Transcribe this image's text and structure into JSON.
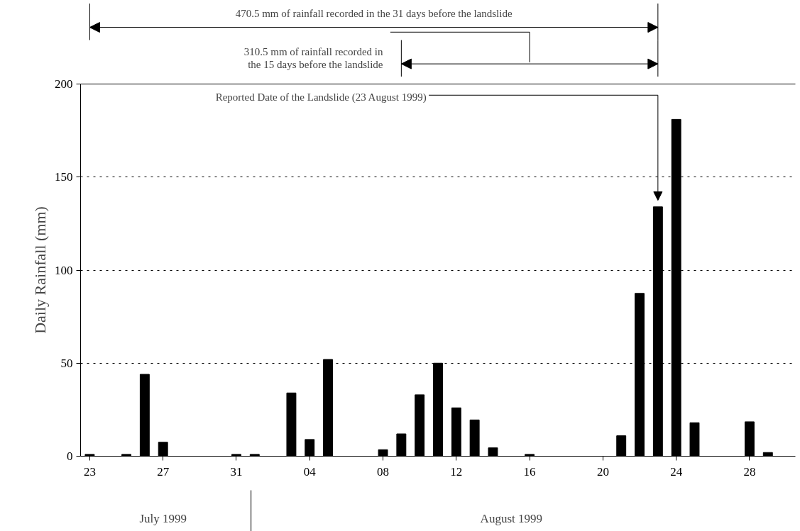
{
  "chart_data": {
    "type": "bar",
    "ylabel": "Daily Rainfall (mm)",
    "color": "#000000",
    "x": [
      "1999-07-23",
      "1999-07-24",
      "1999-07-25",
      "1999-07-26",
      "1999-07-27",
      "1999-07-28",
      "1999-07-29",
      "1999-07-30",
      "1999-07-31",
      "1999-08-01",
      "1999-08-02",
      "1999-08-03",
      "1999-08-04",
      "1999-08-05",
      "1999-08-06",
      "1999-08-07",
      "1999-08-08",
      "1999-08-09",
      "1999-08-10",
      "1999-08-11",
      "1999-08-12",
      "1999-08-13",
      "1999-08-14",
      "1999-08-15",
      "1999-08-16",
      "1999-08-17",
      "1999-08-18",
      "1999-08-19",
      "1999-08-20",
      "1999-08-21",
      "1999-08-22",
      "1999-08-23",
      "1999-08-24",
      "1999-08-25",
      "1999-08-26",
      "1999-08-27",
      "1999-08-28",
      "1999-08-29"
    ],
    "values": [
      1,
      0,
      1,
      44,
      7.5,
      0,
      0,
      0,
      1,
      1,
      0,
      34,
      9,
      52,
      0,
      0,
      3.5,
      12,
      33,
      50,
      26,
      19.5,
      4.5,
      0,
      1,
      0,
      0,
      0,
      0,
      11,
      87.5,
      134,
      181,
      18,
      0,
      0,
      18.5,
      2
    ],
    "xlim": [
      "1999-07-22T12:00",
      "1999-08-30T12:00"
    ],
    "xticks": [
      {
        "value": "1999-07-23",
        "label": "23"
      },
      {
        "value": "1999-07-27",
        "label": "27"
      },
      {
        "value": "1999-07-31",
        "label": "31"
      },
      {
        "value": "1999-08-04",
        "label": "04"
      },
      {
        "value": "1999-08-08",
        "label": "08"
      },
      {
        "value": "1999-08-12",
        "label": "12"
      },
      {
        "value": "1999-08-16",
        "label": "16"
      },
      {
        "value": "1999-08-20",
        "label": "20"
      },
      {
        "value": "1999-08-24",
        "label": "24"
      },
      {
        "value": "1999-08-28",
        "label": "28"
      }
    ],
    "ylim": [
      0,
      200
    ],
    "yticks": [
      0,
      50,
      100,
      150,
      200
    ],
    "grid": "y",
    "annotations": [
      "470.5 mm of rainfall recorded in the 31 days before the landslide",
      "310.5 mm of rainfall recorded in\nthe 15 days before the landslide",
      "Reported Date of the Landslide (23 August 1999)",
      "July 1999",
      "August 1999"
    ]
  }
}
